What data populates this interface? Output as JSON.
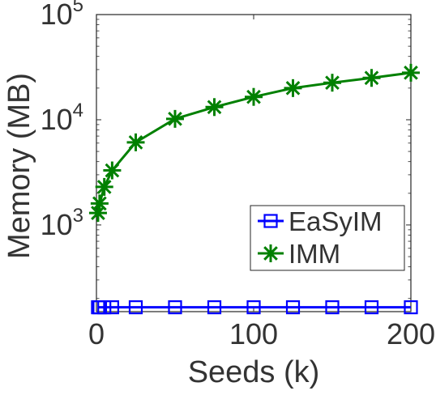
{
  "chart_data": {
    "type": "line",
    "title": "",
    "xlabel": "Seeds (k)",
    "ylabel": "Memory (MB)",
    "x_scale": "linear",
    "y_scale": "log",
    "xlim": [
      0,
      200
    ],
    "ylim": [
      150,
      100000
    ],
    "x_ticks": [
      0,
      100,
      200
    ],
    "x_tick_labels": [
      "0",
      "100",
      "200"
    ],
    "y_ticks": [
      1000,
      10000,
      100000
    ],
    "y_tick_labels": [
      {
        "base": "10",
        "exp": "3"
      },
      {
        "base": "10",
        "exp": "4"
      },
      {
        "base": "10",
        "exp": "5"
      }
    ],
    "grid": false,
    "legend_position": "center-right",
    "series": [
      {
        "name": "EaSyIM",
        "color": "#0000ff",
        "marker": "square",
        "x": [
          1,
          2,
          5,
          10,
          25,
          50,
          75,
          100,
          125,
          150,
          175,
          200
        ],
        "y": [
          165,
          165,
          165,
          165,
          165,
          165,
          165,
          165,
          165,
          165,
          165,
          165
        ]
      },
      {
        "name": "IMM",
        "color": "#008000",
        "marker": "star",
        "x": [
          1,
          2,
          5,
          10,
          25,
          50,
          75,
          100,
          125,
          150,
          175,
          200
        ],
        "y": [
          1300,
          1600,
          2300,
          3300,
          6100,
          10200,
          13200,
          16500,
          20000,
          22500,
          25000,
          28000
        ]
      }
    ]
  }
}
